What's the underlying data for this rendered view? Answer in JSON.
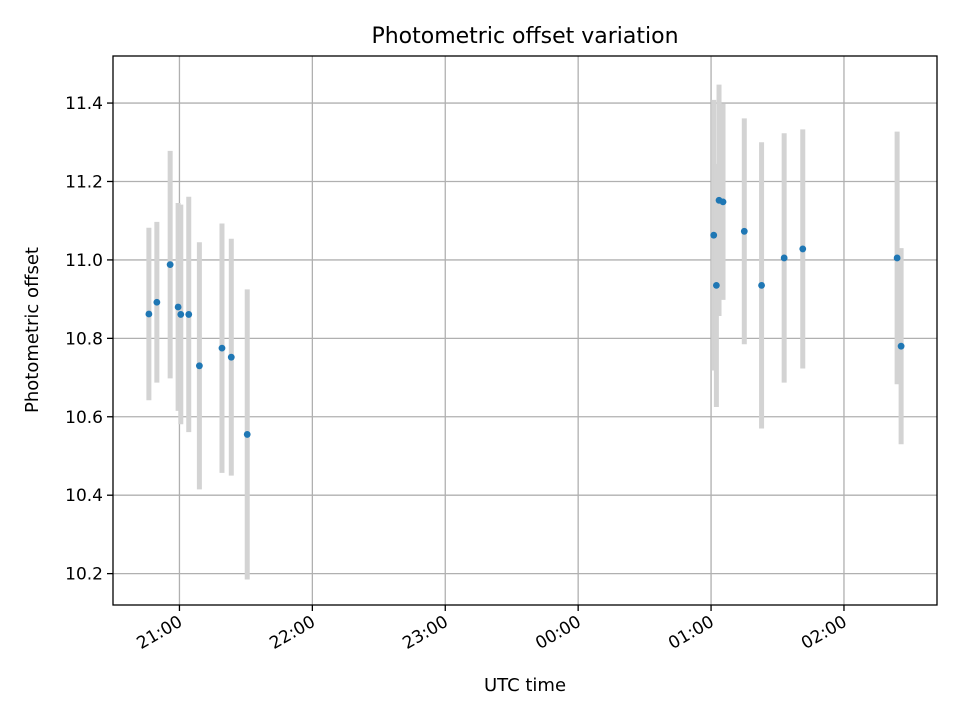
{
  "chart_data": {
    "type": "scatter",
    "title": "Photometric offset variation",
    "xlabel": "UTC time",
    "ylabel": "Photometric offset",
    "x_unit": "UTC hours after 00:00 of the first night",
    "xlim": [
      20.5,
      26.7
    ],
    "ylim": [
      10.12,
      11.52
    ],
    "grid": true,
    "x_ticks": [
      {
        "value": 21,
        "label": "21:00"
      },
      {
        "value": 22,
        "label": "22:00"
      },
      {
        "value": 23,
        "label": "23:00"
      },
      {
        "value": 24,
        "label": "00:00"
      },
      {
        "value": 25,
        "label": "01:00"
      },
      {
        "value": 26,
        "label": "02:00"
      }
    ],
    "y_ticks": [
      {
        "value": 10.2,
        "label": "10.2"
      },
      {
        "value": 10.4,
        "label": "10.4"
      },
      {
        "value": 10.6,
        "label": "10.6"
      },
      {
        "value": 10.8,
        "label": "10.8"
      },
      {
        "value": 11.0,
        "label": "11.0"
      },
      {
        "value": 11.2,
        "label": "11.2"
      },
      {
        "value": 11.4,
        "label": "11.4"
      }
    ],
    "colors": {
      "point": "#1f77b4",
      "errorbar": "#d3d3d3",
      "grid": "#b0b0b0",
      "axes": "#000000"
    },
    "points": [
      {
        "x": 20.77,
        "y": 10.862,
        "err": 0.22
      },
      {
        "x": 20.83,
        "y": 10.892,
        "err": 0.205
      },
      {
        "x": 20.93,
        "y": 10.988,
        "err": 0.29
      },
      {
        "x": 20.99,
        "y": 10.88,
        "err": 0.265
      },
      {
        "x": 21.01,
        "y": 10.861,
        "err": 0.28
      },
      {
        "x": 21.07,
        "y": 10.861,
        "err": 0.3
      },
      {
        "x": 21.15,
        "y": 10.73,
        "err": 0.315
      },
      {
        "x": 21.32,
        "y": 10.775,
        "err": 0.318
      },
      {
        "x": 21.39,
        "y": 10.752,
        "err": 0.302
      },
      {
        "x": 21.51,
        "y": 10.555,
        "err": 0.37
      },
      {
        "x": 25.02,
        "y": 11.063,
        "err": 0.345
      },
      {
        "x": 25.04,
        "y": 10.935,
        "err": 0.31
      },
      {
        "x": 25.06,
        "y": 11.152,
        "err": 0.295
      },
      {
        "x": 25.09,
        "y": 11.148,
        "err": 0.25
      },
      {
        "x": 25.25,
        "y": 11.073,
        "err": 0.288
      },
      {
        "x": 25.38,
        "y": 10.935,
        "err": 0.365
      },
      {
        "x": 25.55,
        "y": 11.005,
        "err": 0.318
      },
      {
        "x": 25.69,
        "y": 11.028,
        "err": 0.305
      },
      {
        "x": 26.4,
        "y": 11.005,
        "err": 0.322
      },
      {
        "x": 26.43,
        "y": 10.78,
        "err": 0.25
      }
    ]
  }
}
